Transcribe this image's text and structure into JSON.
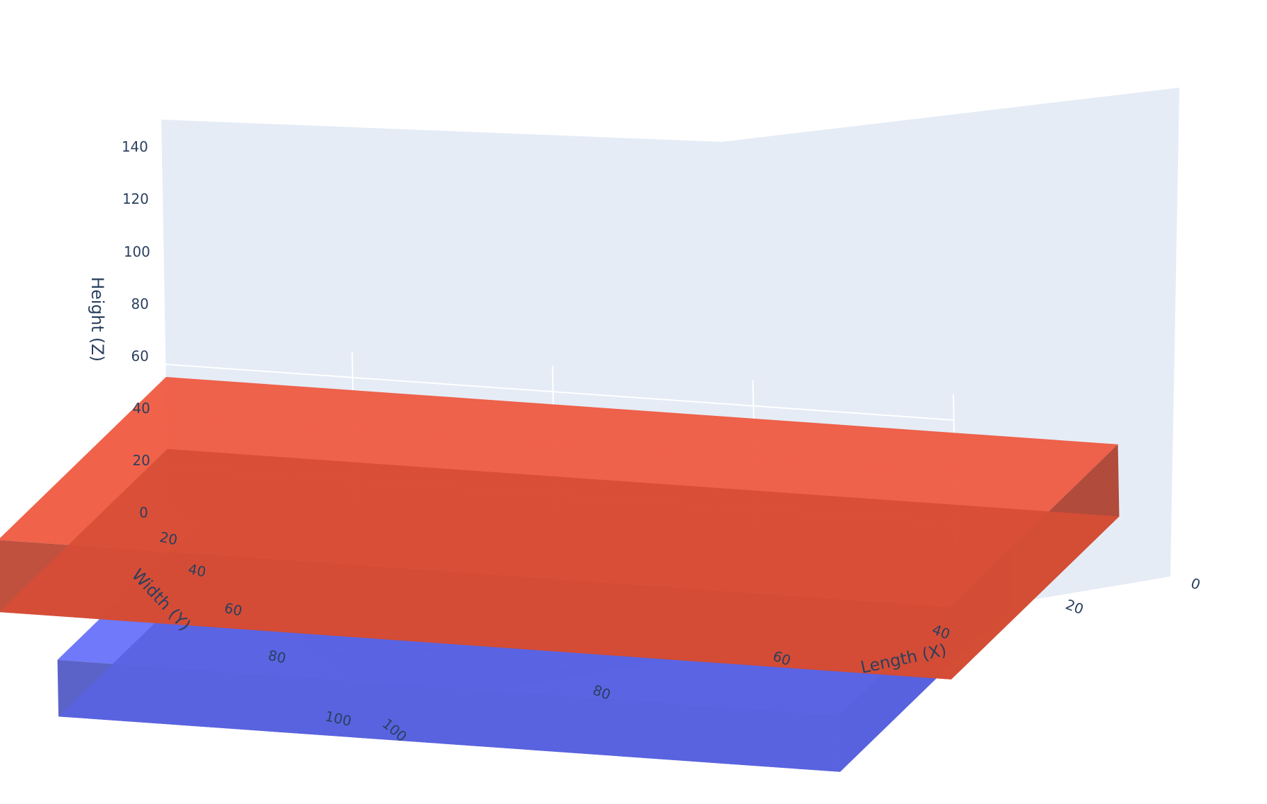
{
  "chart_data": {
    "type": "mesh3d",
    "axes": {
      "x": {
        "title": "Length (X)",
        "ticks": [
          "0",
          "20",
          "40",
          "60",
          "80"
        ]
      },
      "y": {
        "title": "Width (Y)",
        "ticks": [
          "20",
          "40",
          "60",
          "80",
          "100",
          "100"
        ]
      },
      "z": {
        "title": "Height (Z)",
        "ticks": [
          "0",
          "20",
          "40",
          "60",
          "80",
          "100",
          "120",
          "140"
        ]
      }
    },
    "xlim": [
      0,
      100
    ],
    "ylim": [
      0,
      100
    ],
    "zlim": [
      0,
      150
    ],
    "grid": true,
    "legend": false,
    "colors": {
      "scene_background": "#e5ecf6",
      "grid": "#ffffff",
      "blue_box": "#636efa",
      "red_box": "#ef553b"
    },
    "series": [
      {
        "color": "#636efa",
        "x": [
          12,
          90
        ],
        "y": [
          18,
          100
        ],
        "z": [
          0,
          22
        ]
      },
      {
        "color": "#ef553b",
        "x": [
          5,
          100
        ],
        "y": [
          0,
          80
        ],
        "z": [
          22,
          50
        ]
      }
    ]
  }
}
